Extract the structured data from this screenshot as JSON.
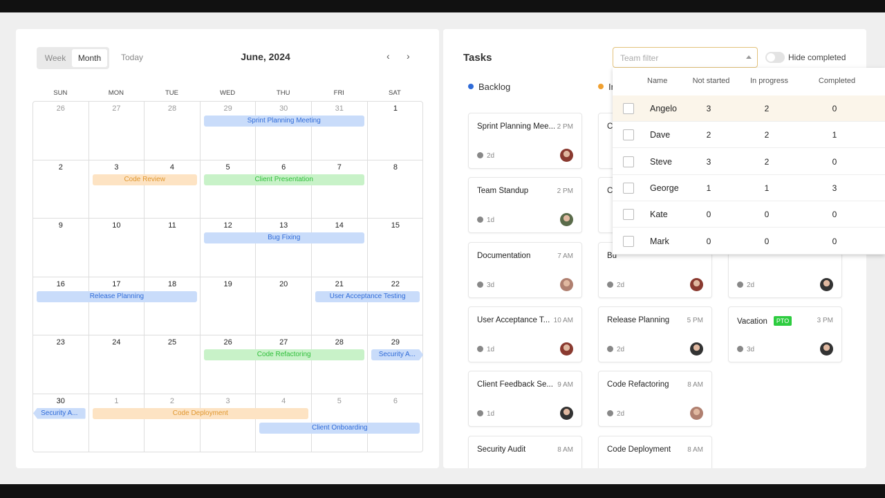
{
  "calendar": {
    "view_week": "Week",
    "view_month": "Month",
    "today": "Today",
    "title": "June, 2024",
    "prev": "‹",
    "next": "›",
    "weekdays": [
      "SUN",
      "MON",
      "TUE",
      "WED",
      "THU",
      "FRI",
      "SAT"
    ],
    "weeks": [
      [
        {
          "d": "26",
          "out": true
        },
        {
          "d": "27",
          "out": true
        },
        {
          "d": "28",
          "out": true
        },
        {
          "d": "29",
          "out": true
        },
        {
          "d": "30",
          "out": true
        },
        {
          "d": "31",
          "out": true
        },
        {
          "d": "1"
        }
      ],
      [
        {
          "d": "2"
        },
        {
          "d": "3"
        },
        {
          "d": "4"
        },
        {
          "d": "5"
        },
        {
          "d": "6"
        },
        {
          "d": "7"
        },
        {
          "d": "8"
        }
      ],
      [
        {
          "d": "9"
        },
        {
          "d": "10"
        },
        {
          "d": "11"
        },
        {
          "d": "12"
        },
        {
          "d": "13"
        },
        {
          "d": "14"
        },
        {
          "d": "15"
        }
      ],
      [
        {
          "d": "16"
        },
        {
          "d": "17"
        },
        {
          "d": "18"
        },
        {
          "d": "19"
        },
        {
          "d": "20"
        },
        {
          "d": "21"
        },
        {
          "d": "22"
        }
      ],
      [
        {
          "d": "23"
        },
        {
          "d": "24"
        },
        {
          "d": "25"
        },
        {
          "d": "26"
        },
        {
          "d": "27"
        },
        {
          "d": "28"
        },
        {
          "d": "29"
        }
      ],
      [
        {
          "d": "30"
        },
        {
          "d": "1",
          "out": true
        },
        {
          "d": "2",
          "out": true
        },
        {
          "d": "3",
          "out": true
        },
        {
          "d": "4",
          "out": true
        },
        {
          "d": "5",
          "out": true
        },
        {
          "d": "6",
          "out": true
        }
      ]
    ],
    "events": [
      {
        "title": "Sprint Planning Meeting",
        "week": 0,
        "start": "WED",
        "end": "FRI",
        "color": "blue"
      },
      {
        "title": "Code Review",
        "week": 1,
        "start": "MON",
        "end": "TUE",
        "color": "orange"
      },
      {
        "title": "Client Presentation",
        "week": 1,
        "start": "WED",
        "end": "FRI",
        "color": "green"
      },
      {
        "title": "Bug Fixing",
        "week": 2,
        "start": "WED",
        "end": "FRI",
        "color": "blue"
      },
      {
        "title": "Release Planning",
        "week": 3,
        "start": "SUN",
        "end": "TUE",
        "color": "blue"
      },
      {
        "title": "User Acceptance Testing",
        "week": 3,
        "start": "FRI",
        "end": "SAT",
        "color": "blue"
      },
      {
        "title": "Code Refactoring",
        "week": 4,
        "start": "WED",
        "end": "FRI",
        "color": "green"
      },
      {
        "title": "Security A...",
        "week": 4,
        "start": "SAT",
        "end": "SAT",
        "color": "blue",
        "continues": true
      },
      {
        "title": "Security A...",
        "week": 5,
        "start": "SUN",
        "end": "SUN",
        "color": "blue",
        "continued": true
      },
      {
        "title": "Code Deployment",
        "week": 5,
        "start": "MON",
        "end": "THU",
        "color": "orange"
      },
      {
        "title": "Client Onboarding",
        "week": 5,
        "start": "THU",
        "end": "SAT",
        "color": "blue"
      }
    ],
    "colors": {
      "blue": {
        "bg": "#c9dcfa",
        "fg": "#2f6bd8"
      },
      "orange": {
        "bg": "#fde3c3",
        "fg": "#e0972f"
      },
      "green": {
        "bg": "#c8f2c8",
        "fg": "#2fbf3a"
      }
    }
  },
  "tasks": {
    "title": "Tasks",
    "filter_placeholder": "Team filter",
    "hide_completed": "Hide completed",
    "hide_completed_on": false,
    "columns": [
      {
        "label": "Backlog",
        "dot": "#2f6bd8",
        "cards": [
          {
            "title": "Sprint Planning Mee...",
            "time": "2 PM",
            "dur": "2d",
            "avatar": "#8a3a30"
          },
          {
            "title": "Team Standup",
            "time": "2 PM",
            "dur": "1d",
            "avatar": "#5a6b4a"
          },
          {
            "title": "Documentation",
            "time": "7 AM",
            "dur": "3d",
            "avatar": "#b08070"
          },
          {
            "title": "User Acceptance T...",
            "time": "10 AM",
            "dur": "1d",
            "avatar": "#8a3a30"
          },
          {
            "title": "Client Feedback Se...",
            "time": "9 AM",
            "dur": "1d",
            "avatar": "#333"
          },
          {
            "title": "Security Audit",
            "time": "8 AM"
          }
        ]
      },
      {
        "label": "In",
        "dot": "#f0a030",
        "cards": [
          {
            "title": "C",
            "dur": "",
            "avatar": ""
          },
          {
            "title": "C",
            "dur": "",
            "avatar": ""
          },
          {
            "title": "Bu",
            "dur": "2d",
            "avatar": "#8a3a30"
          },
          {
            "title": "Release Planning",
            "time": "5 PM",
            "dur": "2d",
            "avatar": "#333"
          },
          {
            "title": "Code Refactoring",
            "time": "8 AM",
            "dur": "2d",
            "avatar": "#b08070"
          },
          {
            "title": "Code Deployment",
            "time": "8 AM"
          }
        ]
      },
      {
        "label": "",
        "dot": "",
        "cards": [
          {
            "title": ""
          },
          {
            "title": ""
          },
          {
            "title": "",
            "dur": "2d",
            "avatar": "#333"
          },
          {
            "title": "Vacation",
            "badge": "PTO",
            "time": "3 PM",
            "dur": "3d",
            "avatar": "#333"
          }
        ]
      }
    ],
    "team_dropdown": {
      "headers": [
        "Name",
        "Not started",
        "In progress",
        "Completed"
      ],
      "rows": [
        {
          "name": "Angelo",
          "not_started": "3",
          "in_progress": "2",
          "completed": "0",
          "hover": true
        },
        {
          "name": "Dave",
          "not_started": "2",
          "in_progress": "2",
          "completed": "1"
        },
        {
          "name": "Steve",
          "not_started": "3",
          "in_progress": "2",
          "completed": "0"
        },
        {
          "name": "George",
          "not_started": "1",
          "in_progress": "1",
          "completed": "3"
        },
        {
          "name": "Kate",
          "not_started": "0",
          "in_progress": "0",
          "completed": "0"
        },
        {
          "name": "Mark",
          "not_started": "0",
          "in_progress": "0",
          "completed": "0"
        }
      ]
    }
  }
}
